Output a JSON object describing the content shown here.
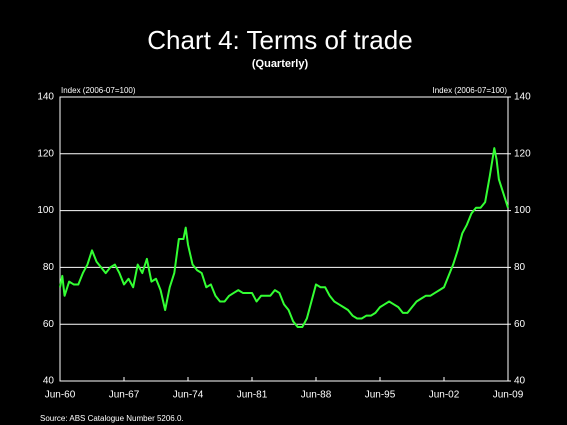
{
  "chart_data": {
    "type": "line",
    "title": "Chart 4: Terms of trade",
    "subtitle": "(Quarterly)",
    "y_label": "Index (2006-07=100)",
    "y2_label": "Index (2006-07=100)",
    "source": "Source:  ABS Catalogue Number 5206.0.",
    "x": [
      1960.5,
      1960.75,
      1961,
      1961.5,
      1962,
      1962.5,
      1963,
      1963.5,
      1964,
      1964.5,
      1965,
      1965.5,
      1966,
      1966.5,
      1967,
      1967.5,
      1968,
      1968.5,
      1969,
      1969.5,
      1970,
      1970.5,
      1971,
      1971.5,
      1972,
      1972.5,
      1973,
      1973.5,
      1974,
      1974.25,
      1974.5,
      1975,
      1975.5,
      1976,
      1976.5,
      1977,
      1977.5,
      1978,
      1978.5,
      1979,
      1979.5,
      1980,
      1980.5,
      1981,
      1981.5,
      1982,
      1982.5,
      1983,
      1983.5,
      1984,
      1984.5,
      1985,
      1985.5,
      1986,
      1986.5,
      1987,
      1987.5,
      1988,
      1988.5,
      1989,
      1989.5,
      1990,
      1990.5,
      1991,
      1991.5,
      1992,
      1992.5,
      1993,
      1993.5,
      1994,
      1994.5,
      1995,
      1995.5,
      1996,
      1996.5,
      1997,
      1997.5,
      1998,
      1998.5,
      1999,
      1999.5,
      2000,
      2000.5,
      2001,
      2001.5,
      2002,
      2002.5,
      2003,
      2003.5,
      2004,
      2004.5,
      2005,
      2005.5,
      2006,
      2006.5,
      2007,
      2007.5,
      2008,
      2008.25,
      2008.5,
      2009,
      2009.5
    ],
    "series": [
      {
        "name": "Terms of trade",
        "color": "#33ff33",
        "values": [
          73,
          77,
          70,
          75,
          74,
          74,
          78,
          81,
          86,
          82,
          80,
          78,
          80,
          81,
          78,
          74,
          76,
          73,
          81,
          78,
          83,
          75,
          76,
          72,
          65,
          73,
          78,
          90,
          90,
          94,
          88,
          81,
          79,
          78,
          73,
          74,
          70,
          68,
          68,
          70,
          71,
          72,
          71,
          71,
          71,
          68,
          70,
          70,
          70,
          72,
          71,
          67,
          65,
          61,
          59,
          59,
          62,
          68,
          74,
          73,
          73,
          70,
          68,
          67,
          66,
          65,
          63,
          62,
          62,
          63,
          63,
          64,
          66,
          67,
          68,
          67,
          66,
          64,
          64,
          66,
          68,
          69,
          70,
          70,
          71,
          72,
          73,
          77,
          81,
          86,
          92,
          95,
          99,
          101,
          101,
          103,
          112,
          122,
          118,
          111,
          106,
          101
        ]
      }
    ],
    "xlim": [
      1960.5,
      2009.5
    ],
    "xticks": [
      {
        "value": 1960.5,
        "label": "Jun-60"
      },
      {
        "value": 1967.5,
        "label": "Jun-67"
      },
      {
        "value": 1974.5,
        "label": "Jun-74"
      },
      {
        "value": 1981.5,
        "label": "Jun-81"
      },
      {
        "value": 1988.5,
        "label": "Jun-88"
      },
      {
        "value": 1995.5,
        "label": "Jun-95"
      },
      {
        "value": 2002.5,
        "label": "Jun-02"
      },
      {
        "value": 2009.5,
        "label": "Jun-09"
      }
    ],
    "ylim": [
      40,
      140
    ],
    "yticks": [
      40,
      60,
      80,
      100,
      120,
      140
    ],
    "y2lim": [
      40,
      140
    ],
    "y2ticks": [
      40,
      60,
      80,
      100,
      120,
      140
    ],
    "grid": true
  }
}
